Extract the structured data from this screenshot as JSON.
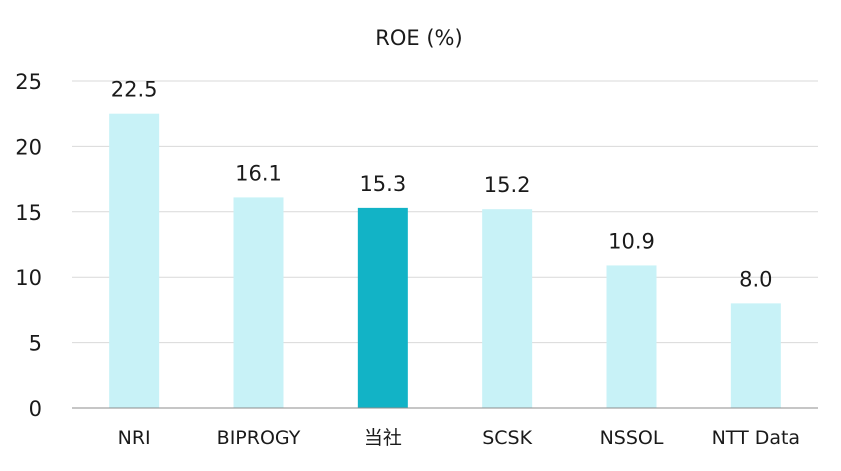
{
  "chart_data": {
    "type": "bar",
    "title": "ROE (%)",
    "xlabel": "",
    "ylabel": "",
    "categories": [
      "NRI",
      "BIPROGY",
      "当社",
      "SCSK",
      "NSSOL",
      "NTT Data"
    ],
    "values": [
      22.5,
      16.1,
      15.3,
      15.2,
      10.9,
      8.0
    ],
    "value_labels": [
      "22.5",
      "16.1",
      "15.3",
      "15.2",
      "10.9",
      "8.0"
    ],
    "highlight_index": 2,
    "ylim": [
      0,
      25
    ],
    "yticks": [
      0,
      5,
      10,
      15,
      20,
      25
    ],
    "ytick_labels": [
      "0",
      "5",
      "10",
      "15",
      "20",
      "25"
    ],
    "grid": true,
    "legend": "none",
    "colors": {
      "bar": "#c8f2f7",
      "highlight": "#12b3c6",
      "grid": "#d9d9d9",
      "axis": "#8c8c8c",
      "text": "#1a1a1a"
    }
  }
}
